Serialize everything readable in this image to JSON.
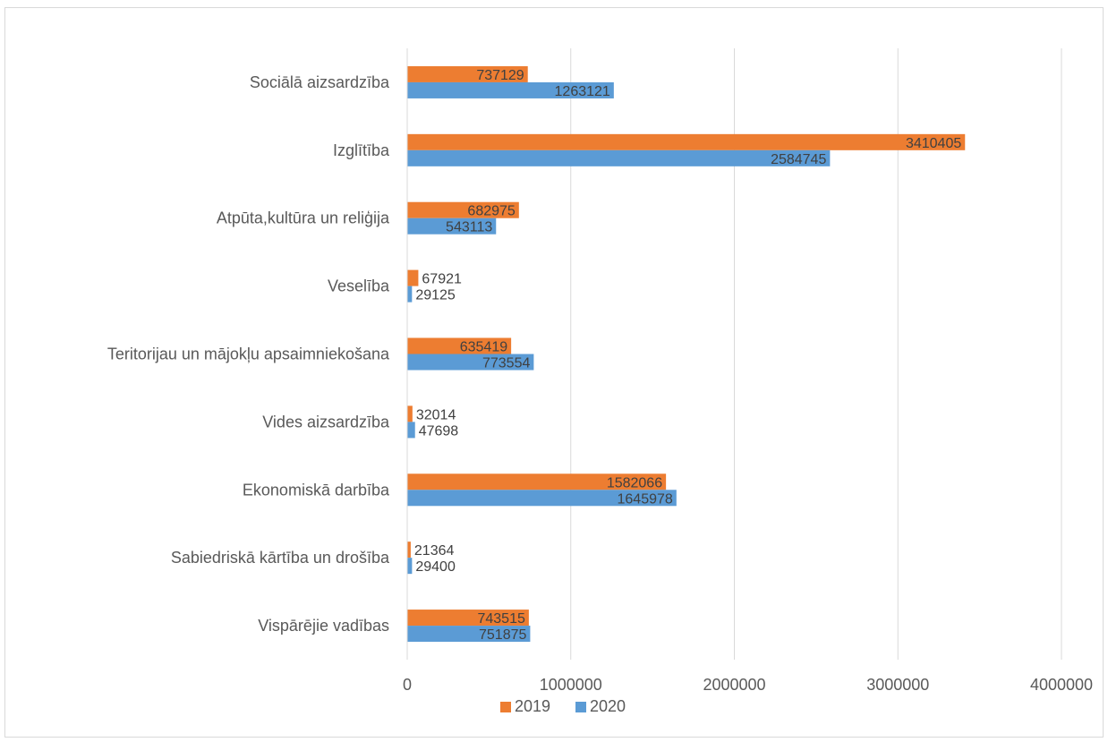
{
  "chart_data": {
    "type": "bar",
    "orientation": "horizontal",
    "title": "",
    "xlabel": "",
    "ylabel": "",
    "categories": [
      "Sociālā aizsardzība",
      "Izglītība",
      "Atpūta,kultūra un reliģija",
      "Veselība",
      "Teritorijau un mājokļu apsaimniekošana",
      "Vides aizsardzība",
      "Ekonomiskā darbība",
      "Sabiedriskā kārtība un drošība",
      "Vispārējie vadības"
    ],
    "series": [
      {
        "name": "2019",
        "color": "#ED7D31",
        "values": [
          737129,
          3410405,
          682975,
          67921,
          635419,
          32014,
          1582066,
          21364,
          743515
        ]
      },
      {
        "name": "2020",
        "color": "#5B9BD5",
        "values": [
          1263121,
          2584745,
          543113,
          29125,
          773554,
          47698,
          1645978,
          29400,
          751875
        ]
      }
    ],
    "xlim": [
      0,
      4000000
    ],
    "xticks": [
      0,
      1000000,
      2000000,
      3000000,
      4000000
    ],
    "xtick_labels": [
      "0",
      "1000000",
      "2000000",
      "3000000",
      "4000000"
    ],
    "grid": "vertical",
    "legend_position": "bottom"
  }
}
